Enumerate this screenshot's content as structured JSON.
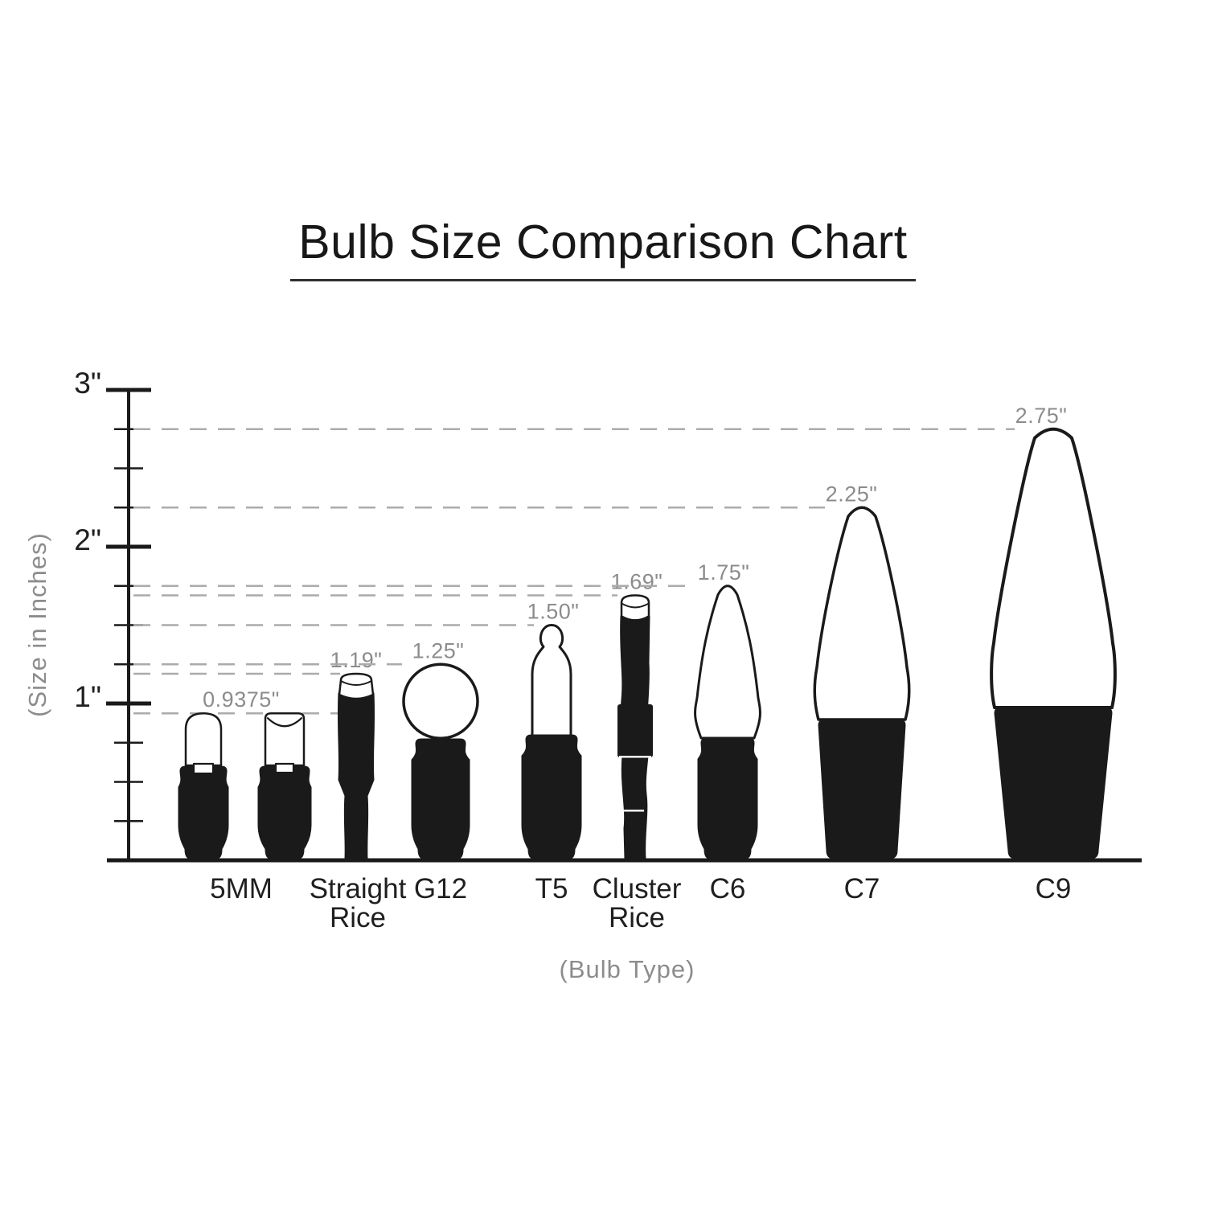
{
  "title": "Bulb Size Comparison Chart",
  "y_axis": {
    "caption": "(Size in Inches)",
    "max_inches": 3,
    "minor_tick_step": 0.25,
    "major_ticks": [
      {
        "value": 1,
        "label": "1\""
      },
      {
        "value": 2,
        "label": "2\""
      },
      {
        "value": 3,
        "label": "3\""
      }
    ]
  },
  "x_axis": {
    "caption": "(Bulb Type)"
  },
  "colors": {
    "ink": "#1a1a1a",
    "muted_text": "#8c8c8c",
    "dash_line": "#ababab",
    "background": "#ffffff"
  },
  "chart_data": {
    "type": "pictorial-bar",
    "title": "Bulb Size Comparison Chart",
    "xlabel": "(Bulb Type)",
    "ylabel": "(Size in Inches)",
    "unit": "inches",
    "ylim": [
      0,
      3
    ],
    "grid": "dashed guide line at each bulb height",
    "legend": "none",
    "categories": [
      "5MM",
      "Straight Rice",
      "G12",
      "T5",
      "Cluster Rice",
      "C6",
      "C7",
      "C9"
    ],
    "values": [
      0.9375,
      1.19,
      1.25,
      1.5,
      1.69,
      1.75,
      2.25,
      2.75
    ],
    "bulbs": [
      {
        "label": "5MM",
        "value": 0.9375,
        "value_label": "0.9375\"",
        "glyphs": [
          "led-dome",
          "led-wedge"
        ]
      },
      {
        "label": "Straight Rice",
        "value": 1.19,
        "value_label": "1.19\"",
        "glyphs": [
          "rice"
        ]
      },
      {
        "label": "G12",
        "value": 1.25,
        "value_label": "1.25\"",
        "glyphs": [
          "globe"
        ]
      },
      {
        "label": "T5",
        "value": 1.5,
        "value_label": "1.50\"",
        "glyphs": [
          "t5"
        ]
      },
      {
        "label": "Cluster Rice",
        "value": 1.69,
        "value_label": "1.69\"",
        "glyphs": [
          "cluster"
        ]
      },
      {
        "label": "C6",
        "value": 1.75,
        "value_label": "1.75\"",
        "glyphs": [
          "c6"
        ]
      },
      {
        "label": "C7",
        "value": 2.25,
        "value_label": "2.25\"",
        "glyphs": [
          "c7"
        ]
      },
      {
        "label": "C9",
        "value": 2.75,
        "value_label": "2.75\"",
        "glyphs": [
          "c9"
        ]
      }
    ]
  }
}
